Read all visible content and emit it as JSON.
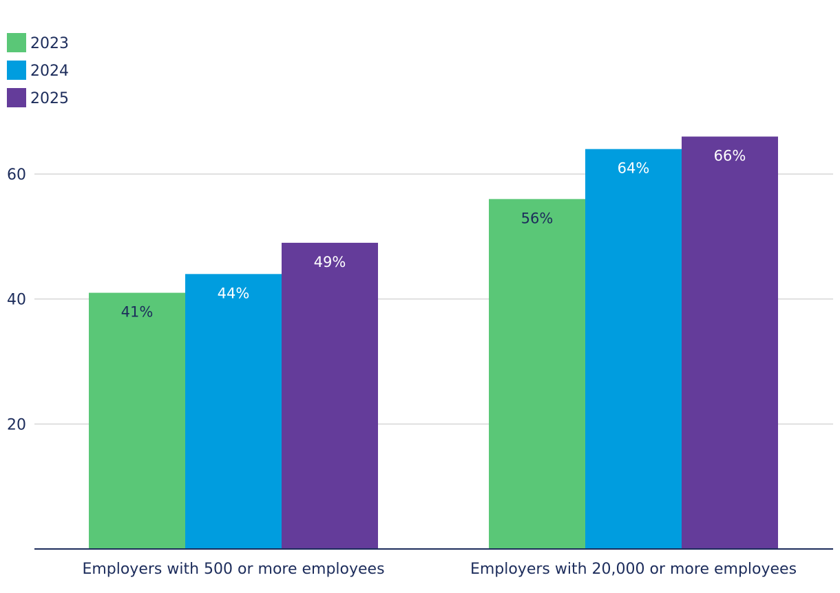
{
  "chart_data": {
    "type": "bar",
    "categories": [
      "Employers with 500 or more employees",
      "Employers with 20,000 or more employees"
    ],
    "series": [
      {
        "name": "2023",
        "color": "#5ac777",
        "values": [
          41,
          56
        ],
        "labels": [
          "41%",
          "56%"
        ],
        "label_color": "#1c2c5b"
      },
      {
        "name": "2024",
        "color": "#009ddf",
        "values": [
          44,
          64
        ],
        "labels": [
          "44%",
          "64%"
        ],
        "label_color": "#ffffff"
      },
      {
        "name": "2025",
        "color": "#643c9a",
        "values": [
          49,
          66
        ],
        "labels": [
          "49%",
          "66%"
        ],
        "label_color": "#ffffff"
      }
    ],
    "y_ticks": [
      20,
      40,
      60
    ],
    "ylim": [
      0,
      72
    ],
    "grid": true,
    "legend_position": "top-left",
    "title": "",
    "xlabel": "",
    "ylabel": ""
  }
}
